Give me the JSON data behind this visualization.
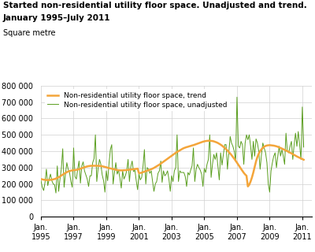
{
  "title_line1": "Started non-residential utility floor space. Unadjusted and trend.",
  "title_line2": "January 1995–July 2011",
  "ylabel_text": "Square metre",
  "ylim": [
    0,
    800000
  ],
  "yticks": [
    0,
    100000,
    200000,
    300000,
    400000,
    500000,
    600000,
    700000,
    800000
  ],
  "ytick_labels": [
    "0",
    "100 000",
    "200 000",
    "300 000",
    "400 000",
    "500 000",
    "600 000",
    "700 000",
    "800 000"
  ],
  "xtick_years": [
    1995,
    1997,
    1999,
    2001,
    2003,
    2005,
    2007,
    2009,
    2011
  ],
  "color_trend": "#F4A53A",
  "color_unadj": "#5a9e1e",
  "legend_trend": "Non-residential utility floor space, trend",
  "legend_unadj": "Non-residential utility floor space, unadjusted",
  "unadjusted": [
    220000,
    180000,
    160000,
    210000,
    290000,
    190000,
    230000,
    260000,
    220000,
    200000,
    195000,
    145000,
    310000,
    155000,
    230000,
    295000,
    415000,
    180000,
    260000,
    330000,
    290000,
    270000,
    215000,
    180000,
    420000,
    245000,
    230000,
    290000,
    340000,
    205000,
    310000,
    335000,
    280000,
    255000,
    230000,
    185000,
    250000,
    250000,
    330000,
    355000,
    500000,
    215000,
    295000,
    350000,
    320000,
    255000,
    220000,
    150000,
    280000,
    220000,
    325000,
    410000,
    440000,
    200000,
    270000,
    330000,
    260000,
    285000,
    235000,
    175000,
    280000,
    230000,
    250000,
    280000,
    350000,
    215000,
    305000,
    340000,
    275000,
    285000,
    220000,
    165000,
    260000,
    225000,
    240000,
    310000,
    410000,
    200000,
    300000,
    290000,
    265000,
    280000,
    215000,
    155000,
    200000,
    215000,
    265000,
    280000,
    340000,
    210000,
    280000,
    250000,
    260000,
    280000,
    230000,
    155000,
    250000,
    215000,
    280000,
    300000,
    500000,
    215000,
    280000,
    270000,
    270000,
    270000,
    245000,
    185000,
    270000,
    255000,
    285000,
    310000,
    420000,
    215000,
    290000,
    320000,
    300000,
    285000,
    260000,
    185000,
    295000,
    270000,
    320000,
    350000,
    500000,
    240000,
    320000,
    380000,
    350000,
    390000,
    310000,
    225000,
    390000,
    315000,
    380000,
    440000,
    440000,
    290000,
    390000,
    490000,
    450000,
    430000,
    400000,
    340000,
    730000,
    430000,
    420000,
    460000,
    440000,
    320000,
    450000,
    500000,
    470000,
    500000,
    430000,
    350000,
    460000,
    370000,
    475000,
    450000,
    400000,
    290000,
    380000,
    450000,
    420000,
    390000,
    330000,
    200000,
    150000,
    280000,
    330000,
    370000,
    390000,
    300000,
    370000,
    430000,
    370000,
    410000,
    370000,
    320000,
    510000,
    400000,
    390000,
    430000,
    460000,
    350000,
    440000,
    510000,
    430000,
    520000,
    440000,
    350000,
    670000,
    425000
  ],
  "trend": [
    230000,
    228000,
    226000,
    225000,
    224000,
    224000,
    224000,
    225000,
    226000,
    228000,
    230000,
    233000,
    237000,
    241000,
    246000,
    252000,
    257000,
    262000,
    267000,
    272000,
    276000,
    279000,
    281000,
    283000,
    284000,
    285000,
    286000,
    288000,
    290000,
    293000,
    296000,
    299000,
    302000,
    305000,
    307000,
    309000,
    310000,
    311000,
    311000,
    311000,
    311000,
    311000,
    311000,
    310000,
    309000,
    308000,
    306000,
    304000,
    302000,
    299000,
    297000,
    295000,
    293000,
    291000,
    289000,
    287000,
    285000,
    284000,
    283000,
    283000,
    283000,
    284000,
    284000,
    285000,
    286000,
    287000,
    288000,
    289000,
    290000,
    291000,
    292000,
    294000,
    266000,
    267000,
    269000,
    272000,
    275000,
    278000,
    281000,
    284000,
    287000,
    290000,
    294000,
    298000,
    303000,
    308000,
    313000,
    318000,
    324000,
    330000,
    336000,
    342000,
    348000,
    354000,
    360000,
    366000,
    372000,
    378000,
    384000,
    390000,
    395000,
    400000,
    405000,
    410000,
    415000,
    419000,
    422000,
    425000,
    427000,
    430000,
    432000,
    435000,
    437000,
    440000,
    443000,
    446000,
    449000,
    452000,
    455000,
    458000,
    460000,
    462000,
    463000,
    464000,
    464000,
    463000,
    462000,
    460000,
    457000,
    454000,
    450000,
    445000,
    440000,
    434000,
    427000,
    420000,
    412000,
    404000,
    395000,
    386000,
    376000,
    365000,
    354000,
    342000,
    330000,
    317000,
    305000,
    292000,
    280000,
    268000,
    258000,
    250000,
    185000,
    195000,
    215000,
    240000,
    270000,
    305000,
    338000,
    365000,
    385000,
    400000,
    412000,
    420000,
    428000,
    432000,
    435000,
    436000,
    437000,
    436000,
    435000,
    434000,
    432000,
    430000,
    427000,
    423000,
    420000,
    416000,
    412000,
    408000,
    404000,
    400000,
    396000,
    391000,
    387000,
    382000,
    377000,
    373000,
    368000,
    364000,
    360000,
    356000,
    352000,
    348000
  ]
}
